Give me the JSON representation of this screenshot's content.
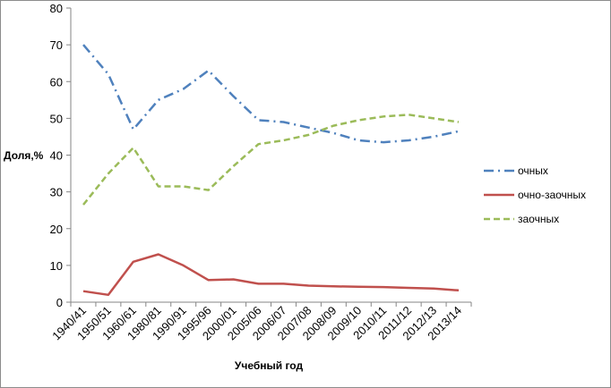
{
  "chart_data": {
    "type": "line",
    "title": "",
    "xlabel": "Учебный год",
    "ylabel": "Доля,%",
    "ylim": [
      0,
      80
    ],
    "yticks": [
      0,
      10,
      20,
      30,
      40,
      50,
      60,
      70,
      80
    ],
    "grid": false,
    "legend_position": "right",
    "categories": [
      "1940/41",
      "1950/51",
      "1960/61",
      "1980/81",
      "1990/91",
      "1995/96",
      "2000/01",
      "2005/06",
      "2006/07",
      "2007/08",
      "2008/09",
      "2009/10",
      "2010/11",
      "2011/12",
      "2012/13",
      "2013/14"
    ],
    "series": [
      {
        "name": "очных",
        "color": "#4f81bd",
        "dash": "dash-dot",
        "values": [
          70,
          62,
          47,
          55,
          58,
          63,
          56,
          49.5,
          49,
          47.5,
          46,
          44,
          43.5,
          44,
          45,
          46.5
        ]
      },
      {
        "name": "очно-заочных",
        "color": "#c0504d",
        "dash": "solid",
        "values": [
          3,
          2,
          11,
          13,
          10,
          6,
          6.2,
          5,
          5,
          4.5,
          4.3,
          4.2,
          4.1,
          3.9,
          3.7,
          3.2
        ]
      },
      {
        "name": "заочных",
        "color": "#9bbb59",
        "dash": "dash",
        "values": [
          26.5,
          35,
          42,
          31.5,
          31.5,
          30.5,
          37,
          43,
          44,
          45.5,
          48,
          49.5,
          50.5,
          51,
          50,
          49
        ]
      }
    ]
  }
}
